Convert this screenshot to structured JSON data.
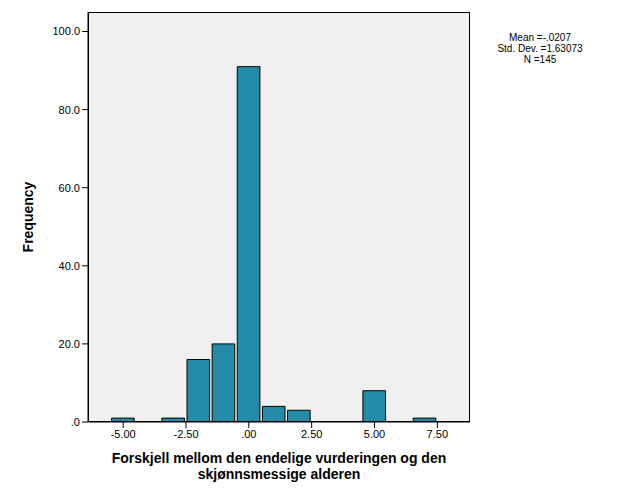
{
  "chart_data": {
    "type": "histogram",
    "x_label": "Forskjell mellom den endelige vurderingen og den skjønnsmessige alderen",
    "y_label": "Frequency",
    "bins": [
      -5.5,
      -4.5,
      -3.5,
      -2.5,
      -1.5,
      -0.5,
      0.5,
      1.5,
      2.5,
      3.5,
      4.5,
      5.5,
      6.5,
      7.5
    ],
    "values": [
      1,
      0,
      1,
      16,
      20,
      91,
      4,
      3,
      0,
      0,
      8,
      0,
      1
    ],
    "color": "#248ca8",
    "xlim": [
      -6.4,
      8.8
    ],
    "xticks": [
      {
        "value": -5,
        "label": "-5.00"
      },
      {
        "value": -2.5,
        "label": "-2.50"
      },
      {
        "value": 0,
        "label": ".00"
      },
      {
        "value": 2.5,
        "label": "2.50"
      },
      {
        "value": 5,
        "label": "5.00"
      },
      {
        "value": 7.5,
        "label": "7.50"
      }
    ],
    "ylim": [
      0,
      105
    ],
    "yticks": [
      {
        "value": 0,
        "label": ".0"
      },
      {
        "value": 20,
        "label": "20.0"
      },
      {
        "value": 40,
        "label": "40.0"
      },
      {
        "value": 60,
        "label": "60.0"
      },
      {
        "value": 80,
        "label": "80.0"
      },
      {
        "value": 100,
        "label": "100.0"
      }
    ],
    "grid": false,
    "annotations": [
      "Mean =-.0207",
      "Std. Dev. =1.63073",
      "N =145"
    ]
  }
}
